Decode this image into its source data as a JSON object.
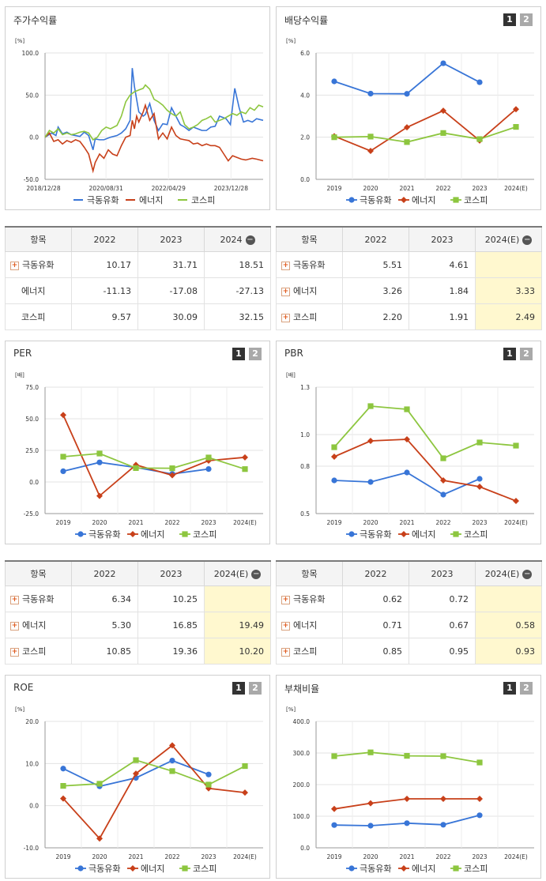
{
  "colors": {
    "s1": "#3875d7",
    "s2": "#c8401a",
    "s3": "#8dc63f"
  },
  "legend": [
    "극동유화",
    "에너지",
    "코스피"
  ],
  "page_buttons": [
    "1",
    "2"
  ],
  "panels": {
    "stock": {
      "title": "주가수익률"
    },
    "div": {
      "title": "배당수익률"
    },
    "per": {
      "title": "PER"
    },
    "pbr": {
      "title": "PBR"
    },
    "roe": {
      "title": "ROE"
    },
    "debt": {
      "title": "부채비율"
    }
  },
  "tables": {
    "stock": {
      "header": [
        "항목",
        "2022",
        "2023",
        "2024"
      ],
      "rows": [
        {
          "name": "극동유화",
          "plus": true,
          "values": [
            "10.17",
            "31.71",
            "18.51"
          ]
        },
        {
          "name": "에너지",
          "plus": false,
          "values": [
            "-11.13",
            "-17.08",
            "-27.13"
          ]
        },
        {
          "name": "코스피",
          "plus": false,
          "values": [
            "9.57",
            "30.09",
            "32.15"
          ]
        }
      ]
    },
    "div": {
      "header": [
        "항목",
        "2022",
        "2023",
        "2024(E)"
      ],
      "rows": [
        {
          "name": "극동유화",
          "plus": true,
          "values": [
            "5.51",
            "4.61",
            ""
          ]
        },
        {
          "name": "에너지",
          "plus": true,
          "values": [
            "3.26",
            "1.84",
            "3.33"
          ]
        },
        {
          "name": "코스피",
          "plus": true,
          "values": [
            "2.20",
            "1.91",
            "2.49"
          ]
        }
      ]
    },
    "per": {
      "header": [
        "항목",
        "2022",
        "2023",
        "2024(E)"
      ],
      "rows": [
        {
          "name": "극동유화",
          "plus": true,
          "values": [
            "6.34",
            "10.25",
            ""
          ]
        },
        {
          "name": "에너지",
          "plus": true,
          "values": [
            "5.30",
            "16.85",
            "19.49"
          ]
        },
        {
          "name": "코스피",
          "plus": true,
          "values": [
            "10.85",
            "19.36",
            "10.20"
          ]
        }
      ]
    },
    "pbr": {
      "header": [
        "항목",
        "2022",
        "2023",
        "2024(E)"
      ],
      "rows": [
        {
          "name": "극동유화",
          "plus": true,
          "values": [
            "0.62",
            "0.72",
            ""
          ]
        },
        {
          "name": "에너지",
          "plus": true,
          "values": [
            "0.71",
            "0.67",
            "0.58"
          ]
        },
        {
          "name": "코스피",
          "plus": true,
          "values": [
            "0.85",
            "0.95",
            "0.93"
          ]
        }
      ]
    }
  },
  "chart_data": [
    {
      "id": "stock",
      "type": "line",
      "unit": "[%]",
      "x_ticks": [
        "2018/12/28",
        "2020/08/31",
        "2022/04/29",
        "2023/12/28"
      ],
      "y_ticks": [
        "100.0",
        "50.0",
        "0.0",
        "-50.0"
      ],
      "ylim": [
        -50,
        100
      ],
      "x_range": [
        0,
        100
      ],
      "series": [
        {
          "name": "극동유화",
          "points": [
            [
              0,
              0
            ],
            [
              3,
              5
            ],
            [
              5,
              2
            ],
            [
              6,
              12
            ],
            [
              8,
              4
            ],
            [
              10,
              6
            ],
            [
              12,
              3
            ],
            [
              14,
              2
            ],
            [
              16,
              1
            ],
            [
              18,
              6
            ],
            [
              20,
              2
            ],
            [
              22,
              -15
            ],
            [
              23,
              -2
            ],
            [
              25,
              -3
            ],
            [
              27,
              -3
            ],
            [
              30,
              0
            ],
            [
              33,
              2
            ],
            [
              35,
              5
            ],
            [
              37,
              10
            ],
            [
              39,
              20
            ],
            [
              40,
              82
            ],
            [
              41,
              60
            ],
            [
              42,
              45
            ],
            [
              43,
              30
            ],
            [
              45,
              25
            ],
            [
              46,
              27
            ],
            [
              48,
              40
            ],
            [
              50,
              20
            ],
            [
              52,
              8
            ],
            [
              54,
              16
            ],
            [
              56,
              15
            ],
            [
              58,
              35
            ],
            [
              60,
              25
            ],
            [
              62,
              15
            ],
            [
              64,
              12
            ],
            [
              66,
              8
            ],
            [
              68,
              12
            ],
            [
              70,
              10
            ],
            [
              72,
              8
            ],
            [
              74,
              8
            ],
            [
              76,
              12
            ],
            [
              78,
              13
            ],
            [
              80,
              25
            ],
            [
              83,
              22
            ],
            [
              85,
              15
            ],
            [
              87,
              58
            ],
            [
              89,
              35
            ],
            [
              91,
              18
            ],
            [
              93,
              20
            ],
            [
              95,
              18
            ],
            [
              97,
              22
            ],
            [
              100,
              20
            ]
          ]
        },
        {
          "name": "에너지",
          "points": [
            [
              0,
              0
            ],
            [
              2,
              5
            ],
            [
              4,
              -5
            ],
            [
              6,
              -3
            ],
            [
              8,
              -8
            ],
            [
              10,
              -4
            ],
            [
              12,
              -6
            ],
            [
              14,
              -3
            ],
            [
              16,
              -5
            ],
            [
              18,
              -12
            ],
            [
              20,
              -20
            ],
            [
              22,
              -40
            ],
            [
              23,
              -30
            ],
            [
              25,
              -20
            ],
            [
              27,
              -25
            ],
            [
              29,
              -15
            ],
            [
              31,
              -20
            ],
            [
              33,
              -22
            ],
            [
              35,
              -10
            ],
            [
              37,
              0
            ],
            [
              39,
              2
            ],
            [
              40,
              20
            ],
            [
              41,
              10
            ],
            [
              42,
              25
            ],
            [
              43,
              18
            ],
            [
              45,
              30
            ],
            [
              46,
              38
            ],
            [
              48,
              20
            ],
            [
              50,
              28
            ],
            [
              52,
              -2
            ],
            [
              54,
              5
            ],
            [
              56,
              -2
            ],
            [
              58,
              12
            ],
            [
              60,
              2
            ],
            [
              62,
              -2
            ],
            [
              64,
              -3
            ],
            [
              66,
              -4
            ],
            [
              68,
              -8
            ],
            [
              70,
              -7
            ],
            [
              72,
              -10
            ],
            [
              74,
              -8
            ],
            [
              76,
              -10
            ],
            [
              78,
              -10
            ],
            [
              80,
              -12
            ],
            [
              82,
              -20
            ],
            [
              84,
              -28
            ],
            [
              86,
              -22
            ],
            [
              88,
              -24
            ],
            [
              90,
              -26
            ],
            [
              92,
              -27
            ],
            [
              95,
              -25
            ],
            [
              97,
              -26
            ],
            [
              100,
              -28
            ]
          ]
        },
        {
          "name": "코스피",
          "points": [
            [
              0,
              0
            ],
            [
              2,
              8
            ],
            [
              4,
              5
            ],
            [
              6,
              10
            ],
            [
              8,
              3
            ],
            [
              10,
              5
            ],
            [
              12,
              3
            ],
            [
              14,
              4
            ],
            [
              16,
              6
            ],
            [
              18,
              7
            ],
            [
              20,
              5
            ],
            [
              22,
              -3
            ],
            [
              24,
              0
            ],
            [
              26,
              8
            ],
            [
              28,
              12
            ],
            [
              30,
              10
            ],
            [
              33,
              14
            ],
            [
              35,
              25
            ],
            [
              37,
              42
            ],
            [
              39,
              50
            ],
            [
              41,
              54
            ],
            [
              43,
              56
            ],
            [
              45,
              58
            ],
            [
              46,
              62
            ],
            [
              48,
              57
            ],
            [
              50,
              45
            ],
            [
              52,
              42
            ],
            [
              54,
              38
            ],
            [
              56,
              32
            ],
            [
              58,
              28
            ],
            [
              60,
              25
            ],
            [
              62,
              30
            ],
            [
              64,
              15
            ],
            [
              66,
              10
            ],
            [
              68,
              12
            ],
            [
              70,
              15
            ],
            [
              72,
              20
            ],
            [
              74,
              22
            ],
            [
              76,
              25
            ],
            [
              78,
              18
            ],
            [
              80,
              20
            ],
            [
              82,
              22
            ],
            [
              84,
              25
            ],
            [
              86,
              28
            ],
            [
              88,
              26
            ],
            [
              90,
              30
            ],
            [
              92,
              28
            ],
            [
              94,
              35
            ],
            [
              96,
              32
            ],
            [
              98,
              38
            ],
            [
              100,
              36
            ]
          ]
        }
      ]
    },
    {
      "id": "div",
      "type": "line",
      "unit": "[%]",
      "categories": [
        "2019",
        "2020",
        "2021",
        "2022",
        "2023",
        "2024(E)"
      ],
      "y_ticks": [
        "6.0",
        "4.0",
        "2.0",
        "0.0"
      ],
      "ylim": [
        0,
        6
      ],
      "series": [
        {
          "name": "극동유화",
          "values": [
            4.65,
            4.07,
            4.06,
            5.51,
            4.61,
            null
          ]
        },
        {
          "name": "에너지",
          "values": [
            2.05,
            1.35,
            2.47,
            3.26,
            1.84,
            3.33
          ]
        },
        {
          "name": "코스피",
          "values": [
            2.0,
            2.03,
            1.77,
            2.2,
            1.91,
            2.49
          ]
        }
      ]
    },
    {
      "id": "per",
      "type": "line",
      "unit": "[배]",
      "categories": [
        "2019",
        "2020",
        "2021",
        "2022",
        "2023",
        "2024(E)"
      ],
      "y_ticks": [
        "75.0",
        "50.0",
        "25.0",
        "0.0",
        "-25.0"
      ],
      "ylim": [
        -25,
        75
      ],
      "series": [
        {
          "name": "극동유화",
          "values": [
            8.5,
            15.5,
            11.5,
            6.34,
            10.25,
            null
          ]
        },
        {
          "name": "에너지",
          "values": [
            53.0,
            -11.0,
            13.5,
            5.3,
            16.85,
            19.49
          ]
        },
        {
          "name": "코스피",
          "values": [
            20.0,
            22.5,
            11.0,
            10.85,
            19.36,
            10.2
          ]
        }
      ]
    },
    {
      "id": "pbr",
      "type": "line",
      "unit": "[배]",
      "categories": [
        "2019",
        "2020",
        "2021",
        "2022",
        "2023",
        "2024(E)"
      ],
      "y_ticks": [
        "1.3",
        "1.0",
        "0.8",
        "0.5"
      ],
      "ylim": [
        0.5,
        1.3
      ],
      "series": [
        {
          "name": "극동유화",
          "values": [
            0.71,
            0.7,
            0.76,
            0.62,
            0.72,
            null
          ]
        },
        {
          "name": "에너지",
          "values": [
            0.86,
            0.96,
            0.97,
            0.71,
            0.67,
            0.58
          ]
        },
        {
          "name": "코스피",
          "values": [
            0.92,
            1.18,
            1.16,
            0.85,
            0.95,
            0.93
          ]
        }
      ]
    },
    {
      "id": "roe",
      "type": "line",
      "unit": "[%]",
      "categories": [
        "2019",
        "2020",
        "2021",
        "2022",
        "2023",
        "2024(E)"
      ],
      "y_ticks": [
        "20.0",
        "10.0",
        "0.0",
        "-10.0"
      ],
      "ylim": [
        -10,
        20
      ],
      "series": [
        {
          "name": "극동유화",
          "values": [
            8.8,
            4.6,
            6.6,
            10.7,
            7.4,
            null
          ]
        },
        {
          "name": "에너지",
          "values": [
            1.7,
            -7.8,
            7.6,
            14.3,
            4.1,
            3.1
          ]
        },
        {
          "name": "코스피",
          "values": [
            4.7,
            5.2,
            10.8,
            8.2,
            5.0,
            9.4
          ]
        }
      ]
    },
    {
      "id": "debt",
      "type": "line",
      "unit": "[%]",
      "categories": [
        "2019",
        "2020",
        "2021",
        "2022",
        "2023",
        "2024(E)"
      ],
      "y_ticks": [
        "400.0",
        "300.0",
        "200.0",
        "100.0",
        "0.0"
      ],
      "ylim": [
        0,
        400
      ],
      "series": [
        {
          "name": "극동유화",
          "values": [
            72,
            70,
            78,
            73,
            103,
            null
          ]
        },
        {
          "name": "에너지",
          "values": [
            123,
            141,
            155,
            155,
            155,
            null
          ]
        },
        {
          "name": "코스피",
          "values": [
            290,
            302,
            291,
            290,
            270,
            null
          ]
        }
      ]
    }
  ]
}
